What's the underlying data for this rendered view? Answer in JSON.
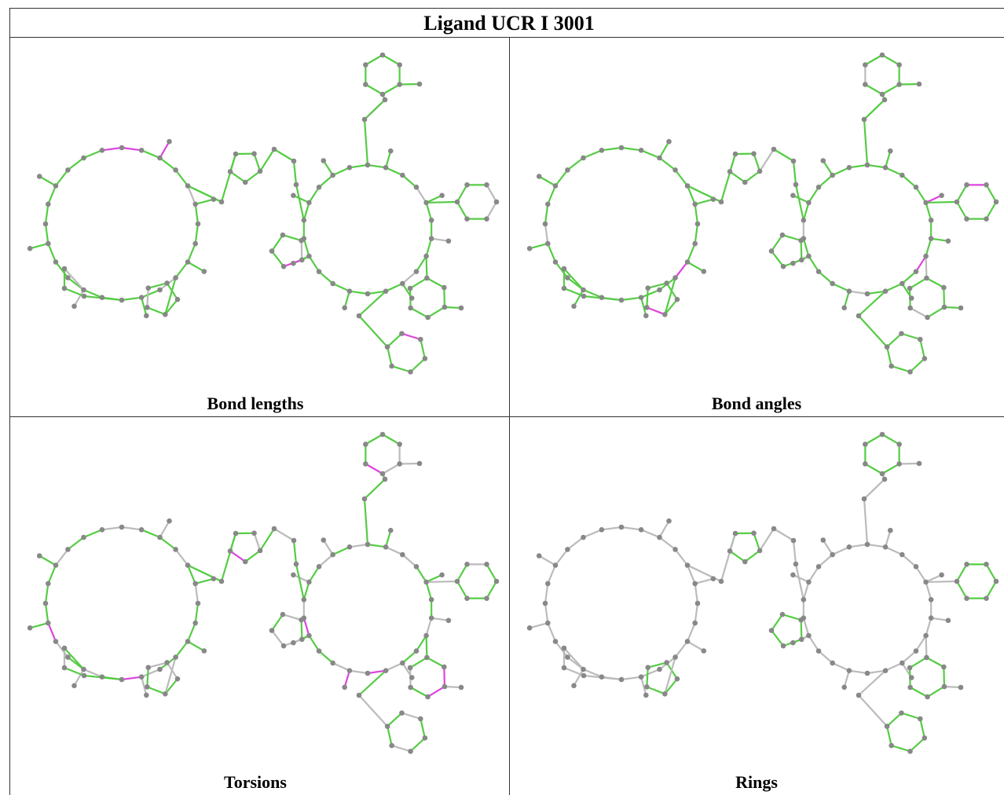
{
  "header": {
    "title": "Ligand UCR I 3001"
  },
  "panels": [
    {
      "label": "Bond lengths"
    },
    {
      "label": "Bond angles"
    },
    {
      "label": "Torsions"
    },
    {
      "label": "Rings"
    }
  ]
}
